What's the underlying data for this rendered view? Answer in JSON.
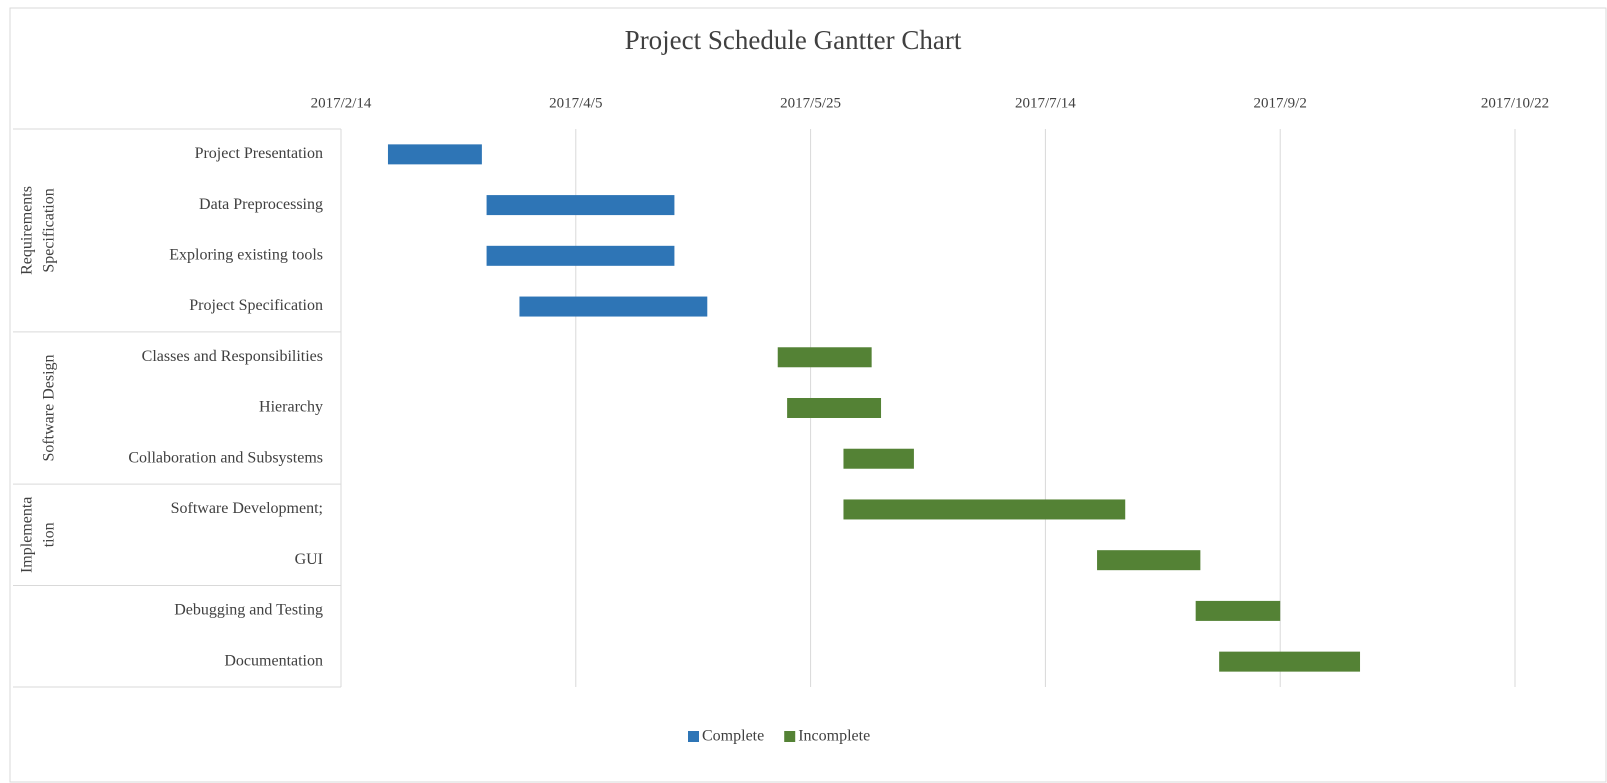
{
  "chart_data": {
    "type": "gantt",
    "title": "Project Schedule Gantter Chart",
    "categories": [
      "Project Presentation",
      "Data Preprocessing",
      "Exploring existing tools",
      "Project Specification",
      "Classes and Responsibilities",
      "Hierarchy",
      "Collaboration and Subsystems",
      "Software Development;",
      "GUI",
      "Debugging and Testing",
      "Documentation"
    ],
    "groups": [
      {
        "label": [
          "Requirements",
          "Specification"
        ],
        "count": 4
      },
      {
        "label": [
          "Software Design"
        ],
        "count": 3
      },
      {
        "label": [
          "Implementa",
          "tion"
        ],
        "count": 2
      },
      {
        "count": 2
      }
    ],
    "start": [
      42790,
      42811,
      42811,
      42818,
      42873,
      42875,
      42887,
      42887,
      42941,
      42962,
      42967
    ],
    "series": [
      {
        "name": "Complete",
        "color": "#2e75b6",
        "values": [
          20,
          40,
          40,
          40,
          null,
          null,
          null,
          null,
          null,
          null,
          null
        ]
      },
      {
        "name": "Incomplete",
        "color": "#548235",
        "values": [
          null,
          null,
          null,
          null,
          20,
          20,
          15,
          60,
          22,
          18,
          30
        ]
      }
    ],
    "xlim": [
      42780,
      43030
    ],
    "xticks": [
      {
        "value": 42780,
        "label": "2017/2/14"
      },
      {
        "value": 42830,
        "label": "2017/4/5"
      },
      {
        "value": 42880,
        "label": "2017/5/25"
      },
      {
        "value": 42930,
        "label": "2017/7/14"
      },
      {
        "value": 42980,
        "label": "2017/9/2"
      },
      {
        "value": 43030,
        "label": "2017/10/22"
      }
    ],
    "grid": true,
    "legend": "bottom"
  }
}
